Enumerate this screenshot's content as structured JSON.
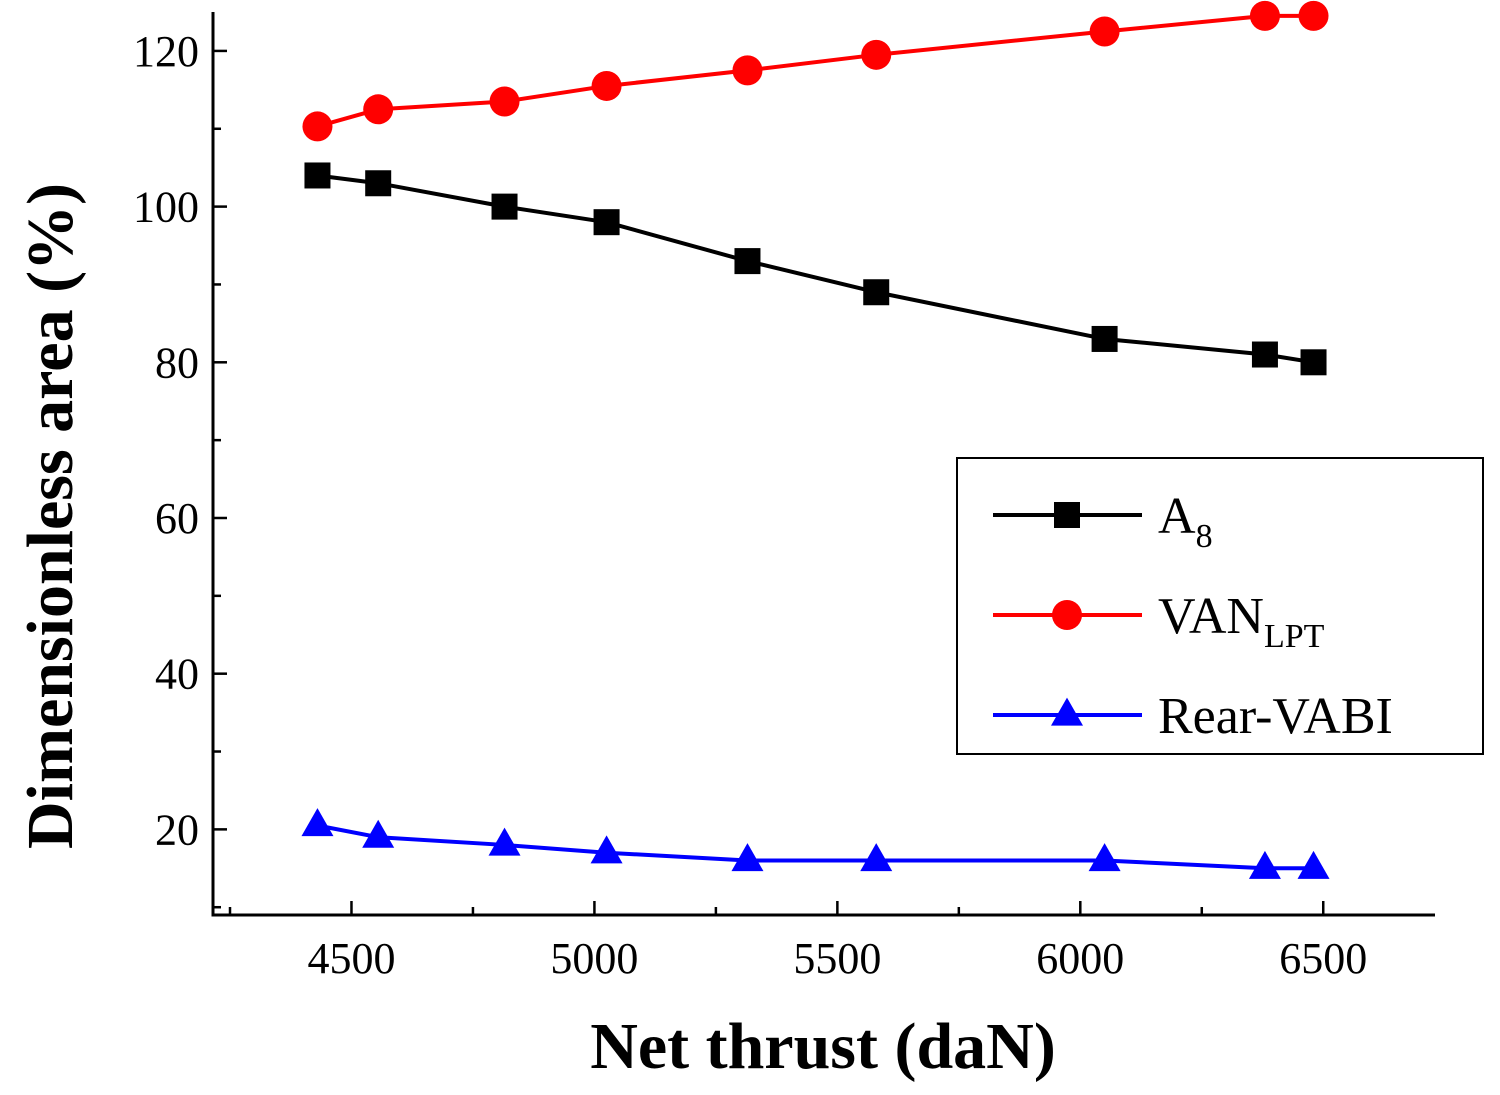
{
  "chart_data": {
    "type": "line",
    "title": "",
    "xlabel": "Net thrust (daN)",
    "ylabel": "Dimensionless area (%)",
    "xlim": [
      4215,
      6730
    ],
    "ylim": [
      9,
      125
    ],
    "xticks": [
      4500,
      5000,
      5500,
      6000,
      6500
    ],
    "yticks": [
      20,
      40,
      60,
      80,
      100,
      120
    ],
    "legend_position": "right",
    "series": [
      {
        "name": "A",
        "subscript": "8",
        "color": "#000000",
        "marker": "square",
        "x": [
          4430,
          4555,
          4815,
          5025,
          5315,
          5580,
          6050,
          6380,
          6480
        ],
        "y": [
          104,
          103,
          100,
          98,
          93,
          89,
          83,
          81,
          80
        ]
      },
      {
        "name": "VAN",
        "subscript": "LPT",
        "color": "#ff0000",
        "marker": "circle",
        "x": [
          4430,
          4555,
          4815,
          5025,
          5315,
          5580,
          6050,
          6380,
          6480
        ],
        "y": [
          110.3,
          112.5,
          113.5,
          115.5,
          117.5,
          119.5,
          122.5,
          124.5,
          124.5
        ]
      },
      {
        "name": "Rear-VABI",
        "subscript": "",
        "color": "#0000ff",
        "marker": "triangle",
        "x": [
          4430,
          4555,
          4815,
          5025,
          5315,
          5580,
          6050,
          6380,
          6480
        ],
        "y": [
          20.5,
          19,
          18,
          17,
          16,
          16,
          16,
          15,
          15
        ]
      }
    ]
  }
}
